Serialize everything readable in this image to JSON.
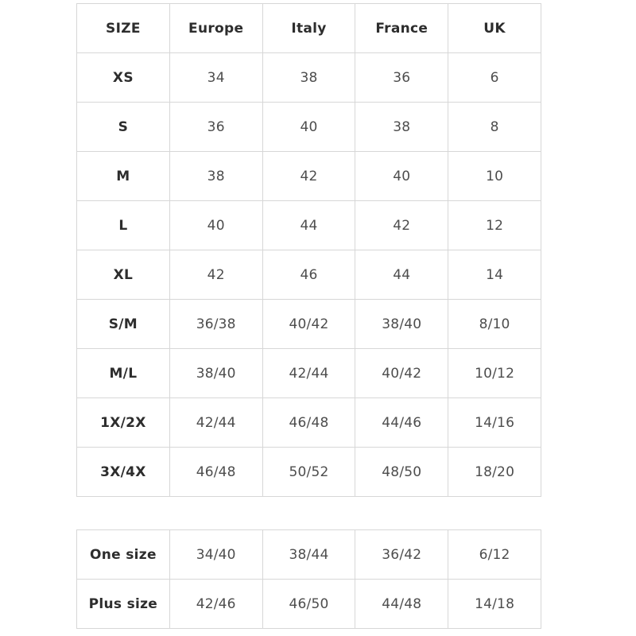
{
  "chart_data": {
    "type": "table",
    "columns": [
      "SIZE",
      "Europe",
      "Italy",
      "France",
      "UK"
    ],
    "main_rows": [
      {
        "label": "XS",
        "values": [
          "34",
          "38",
          "36",
          "6"
        ]
      },
      {
        "label": "S",
        "values": [
          "36",
          "40",
          "38",
          "8"
        ]
      },
      {
        "label": "M",
        "values": [
          "38",
          "42",
          "40",
          "10"
        ]
      },
      {
        "label": "L",
        "values": [
          "40",
          "44",
          "42",
          "12"
        ]
      },
      {
        "label": "XL",
        "values": [
          "42",
          "46",
          "44",
          "14"
        ]
      },
      {
        "label": "S/M",
        "values": [
          "36/38",
          "40/42",
          "38/40",
          "8/10"
        ]
      },
      {
        "label": "M/L",
        "values": [
          "38/40",
          "42/44",
          "40/42",
          "10/12"
        ]
      },
      {
        "label": "1X/2X",
        "values": [
          "42/44",
          "46/48",
          "44/46",
          "14/16"
        ]
      },
      {
        "label": "3X/4X",
        "values": [
          "46/48",
          "50/52",
          "48/50",
          "18/20"
        ]
      }
    ],
    "secondary_rows": [
      {
        "label": "One size",
        "values": [
          "34/40",
          "38/44",
          "36/42",
          "6/12"
        ]
      },
      {
        "label": "Plus size",
        "values": [
          "42/46",
          "46/50",
          "44/48",
          "14/18"
        ]
      }
    ],
    "layout": {
      "grid": "on",
      "columns_count": 5,
      "main_rows_count": 9,
      "secondary_rows_count": 2
    }
  },
  "colors": {
    "border": "#d7d7d7",
    "label_text": "#2d2d2d",
    "value_text": "#4d4d4d",
    "background": "#ffffff"
  }
}
